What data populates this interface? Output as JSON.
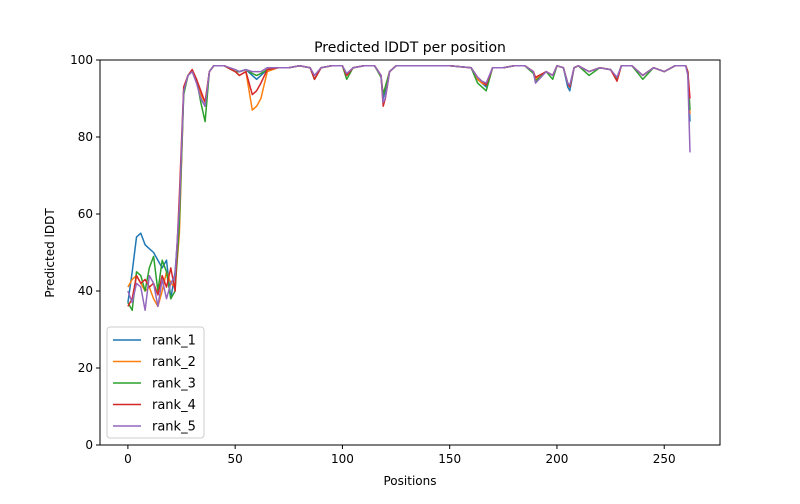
{
  "chart_data": {
    "type": "line",
    "title": "Predicted lDDT per position",
    "xlabel": "Positions",
    "ylabel": "Predicted lDDT",
    "xlim": [
      -13,
      276
    ],
    "ylim": [
      0,
      100
    ],
    "xticks": [
      0,
      50,
      100,
      150,
      200,
      250
    ],
    "yticks": [
      0,
      20,
      40,
      60,
      80,
      100
    ],
    "grid": false,
    "legend_position": "bottom-left",
    "x": [
      0,
      2,
      4,
      6,
      8,
      10,
      12,
      14,
      16,
      18,
      20,
      22,
      24,
      26,
      28,
      30,
      32,
      34,
      36,
      38,
      40,
      45,
      50,
      52,
      55,
      58,
      60,
      62,
      65,
      70,
      75,
      80,
      85,
      87,
      90,
      95,
      100,
      102,
      105,
      110,
      115,
      118,
      119,
      120,
      122,
      125,
      130,
      140,
      150,
      160,
      163,
      165,
      167,
      170,
      175,
      180,
      185,
      189,
      190,
      195,
      198,
      200,
      203,
      205,
      206,
      208,
      210,
      215,
      220,
      225,
      228,
      230,
      235,
      240,
      245,
      250,
      255,
      260,
      261,
      262
    ],
    "series": [
      {
        "name": "rank_1",
        "color": "#1f77b4",
        "values": [
          37,
          45,
          54,
          55,
          52,
          51,
          50,
          48,
          46,
          48,
          38,
          45,
          60,
          92,
          96,
          97,
          95,
          90,
          88,
          97,
          98.5,
          98.5,
          97,
          97,
          97.5,
          96,
          95,
          96,
          97.5,
          98,
          98,
          98.5,
          98,
          95,
          98,
          98.5,
          98.5,
          96,
          98,
          98.5,
          98.5,
          96,
          90,
          92,
          97,
          98.5,
          98.5,
          98.5,
          98.5,
          98,
          95,
          94,
          93,
          98,
          98,
          98.5,
          98.5,
          97,
          95,
          97,
          96,
          98.5,
          98,
          93,
          92,
          98,
          98.5,
          97,
          98,
          97.5,
          95,
          98.5,
          98.5,
          96,
          98,
          97,
          98.5,
          98.5,
          97,
          84
        ]
      },
      {
        "name": "rank_2",
        "color": "#ff7f0e",
        "values": [
          41,
          43,
          44,
          42,
          40,
          41,
          38,
          36,
          40,
          45,
          42,
          41,
          55,
          92,
          96,
          97.5,
          95,
          91,
          89,
          97,
          98.5,
          98.5,
          97,
          96,
          97,
          87,
          88,
          90,
          97,
          98,
          98,
          98.5,
          98,
          95,
          98,
          98.5,
          98.5,
          96,
          98,
          98.5,
          98.5,
          96,
          91,
          93,
          97,
          98.5,
          98.5,
          98.5,
          98.5,
          98,
          95,
          94,
          93.5,
          98,
          98,
          98.5,
          98.5,
          97,
          95,
          97,
          96,
          98.5,
          98,
          94,
          93,
          98,
          98.5,
          97,
          98,
          97.5,
          95,
          98.5,
          98.5,
          96,
          98,
          97,
          98.5,
          98.5,
          97,
          86
        ]
      },
      {
        "name": "rank_3",
        "color": "#2ca02c",
        "values": [
          37,
          35,
          45,
          44,
          40,
          46,
          49,
          40,
          48,
          45,
          38,
          40,
          58,
          91,
          96,
          97,
          95,
          89,
          84,
          97,
          98.5,
          98.5,
          97,
          97,
          97.5,
          96.5,
          96,
          96.5,
          97.5,
          98,
          98,
          98.5,
          98,
          95,
          98,
          98.5,
          98.5,
          95,
          98,
          98.5,
          98.5,
          95.5,
          91,
          93,
          97,
          98.5,
          98.5,
          98.5,
          98.5,
          98,
          94,
          93,
          92,
          98,
          98,
          98.5,
          98.5,
          96.5,
          94.5,
          97,
          95,
          98.5,
          98,
          94,
          93,
          98,
          98.5,
          96,
          98,
          97.5,
          95,
          98.5,
          98.5,
          95,
          98,
          97,
          98.5,
          98.5,
          97,
          87
        ]
      },
      {
        "name": "rank_4",
        "color": "#d62728",
        "values": [
          36,
          38,
          44,
          42,
          43,
          41,
          42,
          39,
          44,
          41,
          46,
          40,
          65,
          93,
          96,
          97.5,
          95,
          92,
          89,
          97,
          98.5,
          98.5,
          97,
          96,
          97,
          91,
          92,
          94,
          97.5,
          98,
          98,
          98.5,
          98,
          95,
          98,
          98.5,
          98.5,
          96,
          98,
          98.5,
          98.5,
          96,
          88,
          90,
          97,
          98.5,
          98.5,
          98.5,
          98.5,
          98,
          95.5,
          94.5,
          93.5,
          98,
          98,
          98.5,
          98.5,
          97,
          95.5,
          97,
          96,
          98.5,
          98,
          94,
          93,
          98,
          98.5,
          97,
          98,
          97.5,
          94.5,
          98.5,
          98.5,
          96,
          98,
          97,
          98.5,
          98.5,
          97,
          90
        ]
      },
      {
        "name": "rank_5",
        "color": "#9467bd",
        "values": [
          40,
          37,
          42,
          41,
          35,
          44,
          42,
          36,
          43,
          38,
          42,
          44,
          62,
          92,
          96,
          97,
          94,
          90,
          88,
          97,
          98.5,
          98.5,
          97.5,
          97,
          97.5,
          97,
          97,
          97,
          98,
          98,
          98,
          98.5,
          98,
          96,
          98,
          98.5,
          98.5,
          96.5,
          98,
          98.5,
          98.5,
          96,
          89,
          90,
          97,
          98.5,
          98.5,
          98.5,
          98.5,
          98,
          95.5,
          94.5,
          94,
          98,
          98,
          98.5,
          98.5,
          97,
          94,
          97,
          96,
          98.5,
          98,
          94,
          93.5,
          98,
          98.5,
          97,
          98,
          97.5,
          95.5,
          98.5,
          98.5,
          96,
          98,
          97,
          98.5,
          98.5,
          96,
          76
        ]
      }
    ]
  }
}
